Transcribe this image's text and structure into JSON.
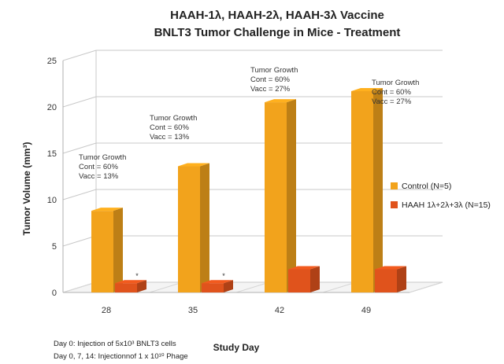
{
  "chart_data": {
    "type": "bar",
    "title": "HAAH-1λ, HAAH-2λ, HAAH-3λ Vaccine",
    "subtitle": "BNLT3 Tumor Challenge in Mice - Treatment",
    "xlabel": "Study Day",
    "ylabel": "Tumor Volume (mm³)",
    "ylim": [
      0,
      25
    ],
    "yticks": [
      "0",
      "5",
      "10",
      "15",
      "20",
      "25"
    ],
    "categories": [
      "28",
      "35",
      "42",
      "49"
    ],
    "series": [
      {
        "name": "Control (N=5)",
        "color": "#f2a31c",
        "values": [
          8.8,
          13.6,
          20.5,
          21.7
        ]
      },
      {
        "name": "HAAH 1λ+2λ+3λ (N=15)",
        "color": "#e0531c",
        "values": [
          1.0,
          1.0,
          2.5,
          2.5
        ]
      }
    ],
    "grid": true,
    "legend_position": "right",
    "annotations": [
      {
        "lines": [
          "Tumor Growth",
          "Cont = 60%",
          "Vacc = 13%"
        ]
      },
      {
        "lines": [
          "Tumor Growth",
          "Cont = 60%",
          "Vacc = 13%"
        ]
      },
      {
        "lines": [
          "Tumor Growth",
          "Cont = 60%",
          "Vacc = 27%"
        ]
      },
      {
        "lines": [
          "Tumor Growth",
          "Cont = 60%",
          "Vacc = 27%"
        ]
      }
    ],
    "stars": [
      "*",
      "*",
      "",
      ""
    ],
    "footnotes": [
      "Day 0:  Injection of 5x10³ BNLT3 cells",
      "Day 0, 7, 14: Injectionnof 1 x 10¹⁰ Phage"
    ]
  }
}
